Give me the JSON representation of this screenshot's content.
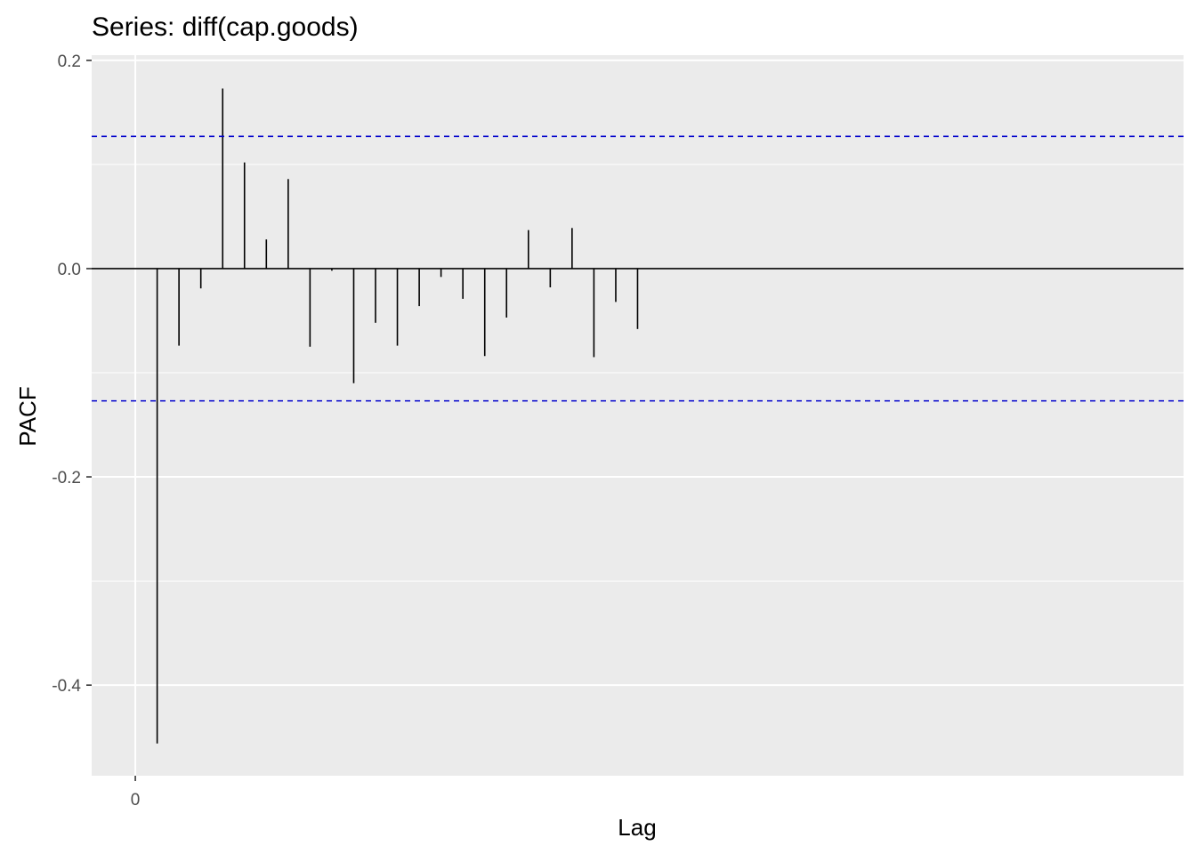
{
  "chart_data": {
    "type": "bar",
    "title": "Series: diff(cap.goods)",
    "xlabel": "Lag",
    "ylabel": "PACF",
    "x_ticks": [
      {
        "value": 0,
        "label": "0"
      }
    ],
    "y_ticks": [
      {
        "value": 0.2,
        "label": "0.2"
      },
      {
        "value": 0.0,
        "label": "0.0"
      },
      {
        "value": -0.2,
        "label": "-0.2"
      },
      {
        "value": -0.4,
        "label": "-0.4"
      }
    ],
    "xlim": [
      -0.0833,
      2.0
    ],
    "ylim": [
      -0.487,
      0.205
    ],
    "confidence_bound": 0.127,
    "lags": [
      0.0417,
      0.0833,
      0.125,
      0.1667,
      0.2083,
      0.25,
      0.2917,
      0.3333,
      0.375,
      0.4167,
      0.4583,
      0.5,
      0.5417,
      0.5833,
      0.625,
      0.6667,
      0.7083,
      0.75,
      0.7917,
      0.8333,
      0.875,
      0.9167,
      0.9583,
      1.0
    ],
    "values": [
      -0.456,
      -0.074,
      -0.019,
      0.173,
      0.102,
      0.028,
      0.086,
      -0.075,
      -0.002,
      -0.11,
      -0.052,
      -0.074,
      -0.036,
      -0.008,
      -0.029,
      -0.084,
      -0.047,
      0.037,
      -0.018,
      0.039,
      -0.085,
      -0.032,
      -0.058,
      0.0
    ],
    "grid": true,
    "colors": {
      "panel_background": "#ebebeb",
      "gridline": "#ffffff",
      "bar": "#000000",
      "confidence_line": "#0000cc",
      "zero_line": "#000000",
      "tick_text": "#4d4d4d",
      "tick_mark": "#333333"
    }
  }
}
